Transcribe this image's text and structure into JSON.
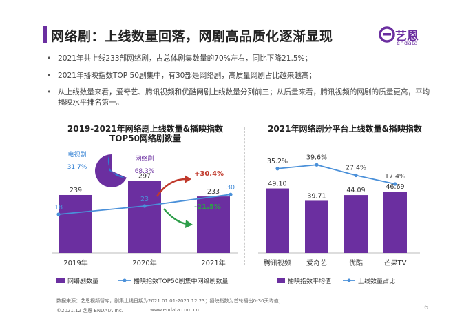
{
  "header": {
    "title": "网络剧：上线数量回落，网剧高品质化逐渐显现",
    "logo_text": "艺恩",
    "logo_sub": "endata"
  },
  "bullets": [
    "2021年共上线233部网络剧，占总体剧集数量的70%左右，同比下降21.5%；",
    "2021年播映指数TOP 50剧集中，有30部是网络剧，高质量网剧占比越来越高；",
    "从上线数量来看，爱奇艺、腾讯视频和优酷网剧上线数量分列前三；从质量来看，腾讯视频的网剧的质量更高，平均播映水平排名第一。"
  ],
  "footer": {
    "source": "数据来源：艺恩视频智库，剧集上线日期为2021.01.01-2021.12.23；播映指数为首轮播出0-30天均值；",
    "copyright": "©2021.12 艺恩 ENDATA Inc.",
    "website": "www.endata.com.cn",
    "page_number": "6"
  },
  "colors": {
    "purple": "#6b2fa0",
    "blue": "#4a90d9",
    "pie_blue": "#2f7fd3",
    "up_red": "#c0392b",
    "down_green": "#2e9e4a"
  },
  "chart_data": [
    {
      "type": "bar",
      "title": "2019-2021年网络剧上线数量&播映指数TOP50网络剧数量",
      "categories": [
        "2019年",
        "2020年",
        "2021年"
      ],
      "series": [
        {
          "name": "网络剧数量",
          "type": "bar",
          "values": [
            239,
            297,
            233
          ]
        },
        {
          "name": "播映指数TOP50剧集中网络剧数量",
          "type": "line",
          "values": [
            18,
            23,
            30
          ]
        }
      ],
      "annotations": {
        "line_change": "+30.4%",
        "bar_change": "-21.5%"
      },
      "pie": {
        "type": "pie",
        "slices": [
          {
            "label": "电视剧",
            "value": "31.7%"
          },
          {
            "label": "网络剧",
            "value": "68.3%"
          }
        ]
      },
      "legend": "bottom"
    },
    {
      "type": "bar",
      "title": "2021年网络剧分平台上线数量&播映指数",
      "categories": [
        "腾讯视频",
        "爱奇艺",
        "优酷",
        "芒果TV"
      ],
      "series": [
        {
          "name": "播映指数平均值",
          "type": "bar",
          "values": [
            49.1,
            39.71,
            44.09,
            46.69
          ]
        },
        {
          "name": "上线数量占比",
          "type": "line",
          "values": [
            "35.2%",
            "39.6%",
            "27.4%",
            "17.4%"
          ]
        }
      ],
      "legend": "bottom"
    }
  ]
}
